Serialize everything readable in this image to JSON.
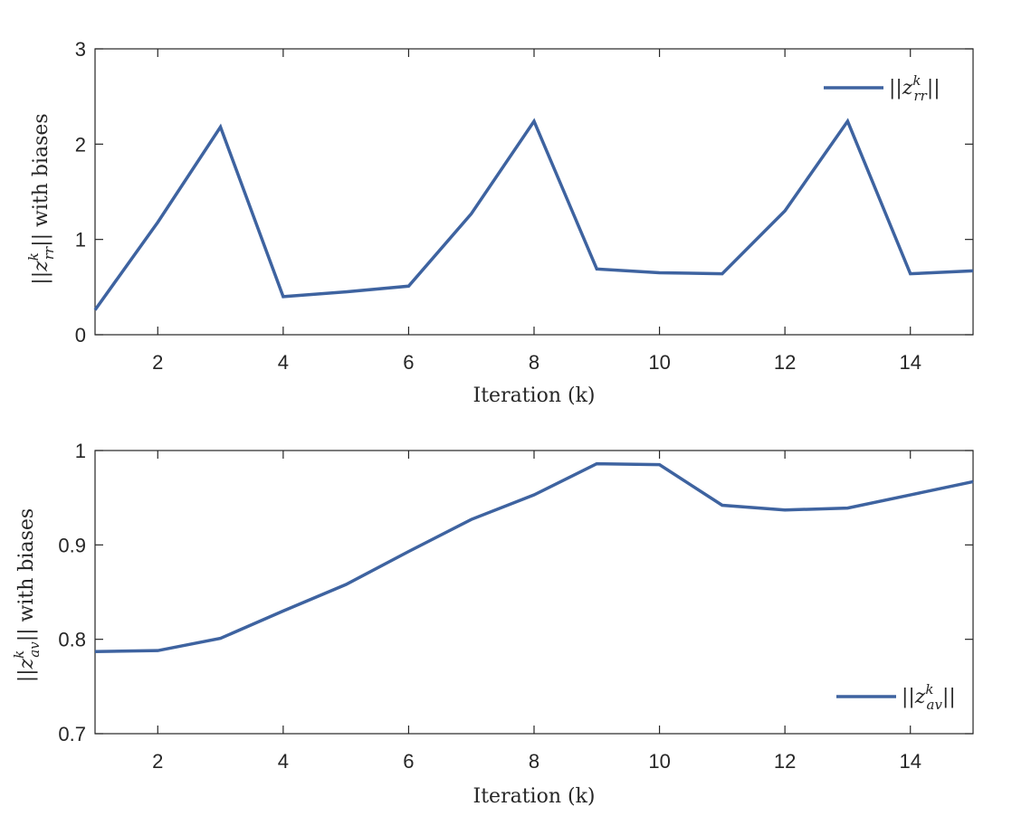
{
  "chart_data": [
    {
      "type": "line",
      "x": [
        1,
        2,
        3,
        4,
        5,
        6,
        7,
        8,
        9,
        10,
        11,
        12,
        13,
        14,
        15
      ],
      "series": [
        {
          "name": "||z_rr^k||",
          "values": [
            0.26,
            1.18,
            2.18,
            0.4,
            0.45,
            0.51,
            1.27,
            2.24,
            0.69,
            0.65,
            0.64,
            1.3,
            2.24,
            0.64,
            0.67
          ]
        }
      ],
      "xlabel": "Iteration (k)",
      "ylabel": "||z_rr^k|| with biases",
      "xlim": [
        1,
        15
      ],
      "ylim": [
        0,
        3
      ],
      "xticks": [
        "2",
        "4",
        "6",
        "8",
        "10",
        "12",
        "14"
      ],
      "yticks": [
        "0",
        "1",
        "2",
        "3"
      ],
      "legend_position": "top-right",
      "grid": false
    },
    {
      "type": "line",
      "x": [
        1,
        2,
        3,
        4,
        5,
        6,
        7,
        8,
        9,
        10,
        11,
        12,
        13,
        14,
        15
      ],
      "series": [
        {
          "name": "||z_av^k||",
          "values": [
            0.787,
            0.788,
            0.801,
            0.83,
            0.858,
            0.893,
            0.927,
            0.953,
            0.986,
            0.985,
            0.942,
            0.937,
            0.939,
            0.953,
            0.967
          ]
        }
      ],
      "xlabel": "Iteration (k)",
      "ylabel": "||z_av^k|| with biases",
      "xlim": [
        1,
        15
      ],
      "ylim": [
        0.7,
        1
      ],
      "xticks": [
        "2",
        "4",
        "6",
        "8",
        "10",
        "12",
        "14"
      ],
      "yticks": [
        "0.7",
        "0.8",
        "0.9",
        "1"
      ],
      "legend_position": "bottom-right",
      "grid": false
    }
  ],
  "colors": {
    "line": "#3e63a0",
    "axis": "#262626"
  },
  "labels": {
    "top": {
      "ylabel_pre": "||",
      "ylabel_var": "z",
      "ylabel_sup": "k",
      "ylabel_sub": "rr",
      "ylabel_post": "|| with biases",
      "legend_pre": "||",
      "legend_var": "z",
      "legend_sup": "k",
      "legend_sub": "rr",
      "legend_post": "||"
    },
    "bottom": {
      "ylabel_pre": "||",
      "ylabel_var": "z",
      "ylabel_sup": "k",
      "ylabel_sub": "av",
      "ylabel_post": "|| with biases",
      "legend_pre": "||",
      "legend_var": "z",
      "legend_sup": "k",
      "legend_sub": "av",
      "legend_post": "||"
    }
  }
}
